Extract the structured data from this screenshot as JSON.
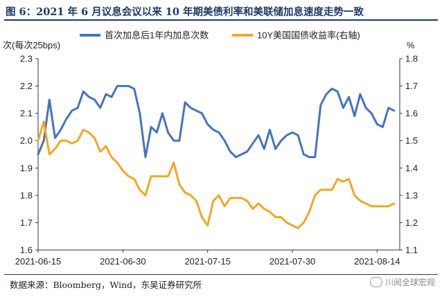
{
  "title": "图 6：2021 年 6 月议息会议以来 10 年期美债利率和美联储加息速度走势一致",
  "source": "数据来源：Bloomberg，Wind，东吴证券研究所",
  "watermark": "川阅全球宏观",
  "chart_data": {
    "type": "line",
    "ylabel_left": "次(每次25bps)",
    "ylabel_right": "%",
    "ylim_left": [
      1.6,
      2.3
    ],
    "ylim_right": [
      1.1,
      1.8
    ],
    "yticks_left": [
      "1.6",
      "1.7",
      "1.8",
      "1.9",
      "2.0",
      "2.1",
      "2.2",
      "2.3"
    ],
    "yticks_right": [
      "1.1",
      "1.2",
      "1.3",
      "1.4",
      "1.5",
      "1.6",
      "1.7",
      "1.8"
    ],
    "xticks": [
      "2021-06-15",
      "2021-06-30",
      "2021-07-15",
      "2021-07-30",
      "2021-08-14"
    ],
    "xlim": [
      "2021-06-15",
      "2021-08-18"
    ],
    "grid": false,
    "legend_position": "top",
    "series": [
      {
        "name": "首次加息后1年内加息次数",
        "axis": "left",
        "color": "#4472c4",
        "x": [
          "2021-06-15",
          "2021-06-16",
          "2021-06-17",
          "2021-06-18",
          "2021-06-19",
          "2021-06-20",
          "2021-06-21",
          "2021-06-22",
          "2021-06-23",
          "2021-06-24",
          "2021-06-25",
          "2021-06-26",
          "2021-06-27",
          "2021-06-28",
          "2021-06-29",
          "2021-06-30",
          "2021-07-01",
          "2021-07-02",
          "2021-07-03",
          "2021-07-04",
          "2021-07-05",
          "2021-07-06",
          "2021-07-07",
          "2021-07-08",
          "2021-07-09",
          "2021-07-10",
          "2021-07-11",
          "2021-07-12",
          "2021-07-13",
          "2021-07-14",
          "2021-07-15",
          "2021-07-16",
          "2021-07-17",
          "2021-07-18",
          "2021-07-19",
          "2021-07-20",
          "2021-07-21",
          "2021-07-22",
          "2021-07-23",
          "2021-07-24",
          "2021-07-25",
          "2021-07-26",
          "2021-07-27",
          "2021-07-28",
          "2021-07-29",
          "2021-07-30",
          "2021-07-31",
          "2021-08-01",
          "2021-08-02",
          "2021-08-03",
          "2021-08-04",
          "2021-08-05",
          "2021-08-06",
          "2021-08-07",
          "2021-08-08",
          "2021-08-09",
          "2021-08-10",
          "2021-08-11",
          "2021-08-12",
          "2021-08-13",
          "2021-08-14",
          "2021-08-15",
          "2021-08-16",
          "2021-08-17"
        ],
        "values": [
          1.95,
          2.0,
          2.15,
          2.01,
          2.04,
          2.08,
          2.11,
          2.12,
          2.18,
          2.16,
          2.15,
          2.12,
          2.17,
          2.16,
          2.2,
          2.2,
          2.2,
          2.19,
          2.1,
          1.94,
          2.05,
          2.03,
          2.1,
          2.03,
          2.0,
          2.0,
          2.14,
          2.12,
          2.11,
          2.1,
          2.06,
          2.04,
          2.03,
          2.0,
          1.96,
          1.94,
          1.95,
          1.96,
          1.99,
          2.02,
          1.97,
          2.04,
          1.97,
          2.0,
          2.02,
          2.03,
          2.02,
          1.95,
          1.94,
          1.94,
          2.13,
          2.17,
          2.19,
          2.18,
          2.12,
          2.16,
          2.09,
          2.17,
          2.12,
          2.1,
          2.06,
          2.05,
          2.12,
          2.11
        ]
      },
      {
        "name": "10Y美国国债收益率(右轴)",
        "axis": "right",
        "color": "#f5a623",
        "x": [
          "2021-06-15",
          "2021-06-16",
          "2021-06-17",
          "2021-06-18",
          "2021-06-19",
          "2021-06-20",
          "2021-06-21",
          "2021-06-22",
          "2021-06-23",
          "2021-06-24",
          "2021-06-25",
          "2021-06-26",
          "2021-06-27",
          "2021-06-28",
          "2021-06-29",
          "2021-06-30",
          "2021-07-01",
          "2021-07-02",
          "2021-07-03",
          "2021-07-04",
          "2021-07-05",
          "2021-07-06",
          "2021-07-07",
          "2021-07-08",
          "2021-07-09",
          "2021-07-10",
          "2021-07-11",
          "2021-07-12",
          "2021-07-13",
          "2021-07-14",
          "2021-07-15",
          "2021-07-16",
          "2021-07-17",
          "2021-07-18",
          "2021-07-19",
          "2021-07-20",
          "2021-07-21",
          "2021-07-22",
          "2021-07-23",
          "2021-07-24",
          "2021-07-25",
          "2021-07-26",
          "2021-07-27",
          "2021-07-28",
          "2021-07-29",
          "2021-07-30",
          "2021-07-31",
          "2021-08-01",
          "2021-08-02",
          "2021-08-03",
          "2021-08-04",
          "2021-08-05",
          "2021-08-06",
          "2021-08-07",
          "2021-08-08",
          "2021-08-09",
          "2021-08-10",
          "2021-08-11",
          "2021-08-12",
          "2021-08-13",
          "2021-08-14",
          "2021-08-15",
          "2021-08-16",
          "2021-08-17"
        ],
        "values": [
          1.5,
          1.57,
          1.45,
          1.47,
          1.5,
          1.5,
          1.49,
          1.5,
          1.54,
          1.53,
          1.51,
          1.46,
          1.48,
          1.44,
          1.42,
          1.39,
          1.37,
          1.36,
          1.32,
          1.3,
          1.37,
          1.37,
          1.37,
          1.37,
          1.42,
          1.34,
          1.31,
          1.3,
          1.28,
          1.22,
          1.19,
          1.28,
          1.3,
          1.26,
          1.29,
          1.29,
          1.29,
          1.28,
          1.25,
          1.27,
          1.25,
          1.24,
          1.22,
          1.22,
          1.2,
          1.19,
          1.18,
          1.2,
          1.24,
          1.3,
          1.32,
          1.32,
          1.32,
          1.36,
          1.35,
          1.36,
          1.3,
          1.28,
          1.27,
          1.26,
          1.26,
          1.26,
          1.26,
          1.27
        ]
      }
    ]
  }
}
